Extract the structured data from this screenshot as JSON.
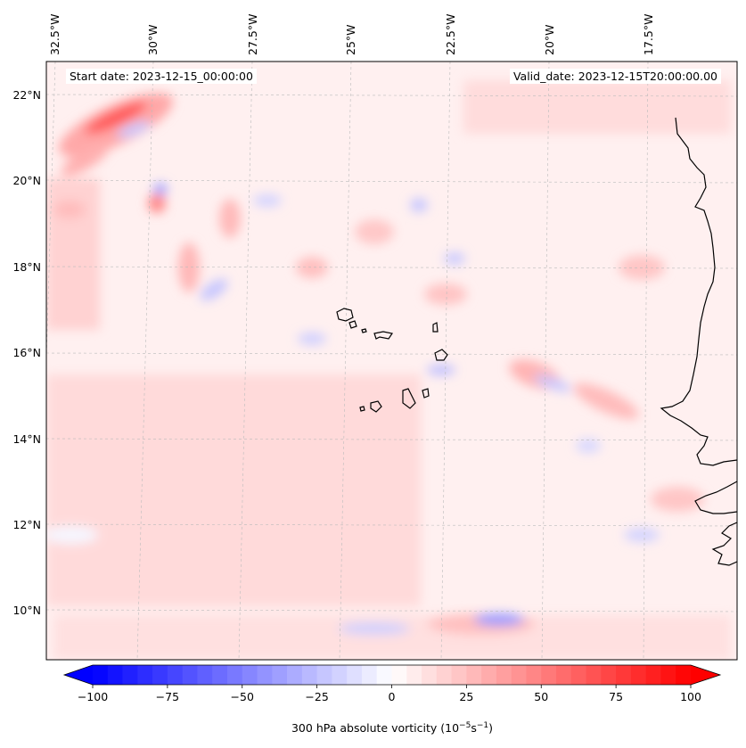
{
  "annotations": {
    "start_date": "Start date: 2023-12-15_00:00:00",
    "valid_date": "Valid_date: 2023-12-15T20:00:00.00"
  },
  "longitude_labels": [
    "32.5°W",
    "30°W",
    "27.5°W",
    "25°W",
    "22.5°W",
    "20°W",
    "17.5°W"
  ],
  "latitude_labels": [
    "22°N",
    "20°N",
    "18°N",
    "16°N",
    "14°N",
    "12°N",
    "10°N"
  ],
  "colorbar": {
    "label_text": "300 hPa absolute vorticity (10",
    "label_exp1": "−5",
    "label_mid": "s",
    "label_exp2": "−1",
    "label_close": ")",
    "ticks": [
      "−100",
      "−75",
      "−50",
      "−25",
      "0",
      "25",
      "50",
      "75",
      "100"
    ],
    "tick_values": [
      -100,
      -75,
      -50,
      -25,
      0,
      25,
      50,
      75,
      100
    ],
    "range": [
      -100,
      100
    ],
    "extend": "both",
    "colormap": "bwr",
    "low_color": "#0000ff",
    "mid_color": "#ffffff",
    "high_color": "#ff0000"
  },
  "map_data": {
    "type": "filled-contour",
    "variable": "300 hPa absolute vorticity",
    "units": "1e-5 s^-1",
    "lon_range": [
      -33,
      -15
    ],
    "lat_range": [
      9,
      23
    ],
    "coastline_color": "#000000",
    "gridline_color": "#bbbbbb"
  }
}
